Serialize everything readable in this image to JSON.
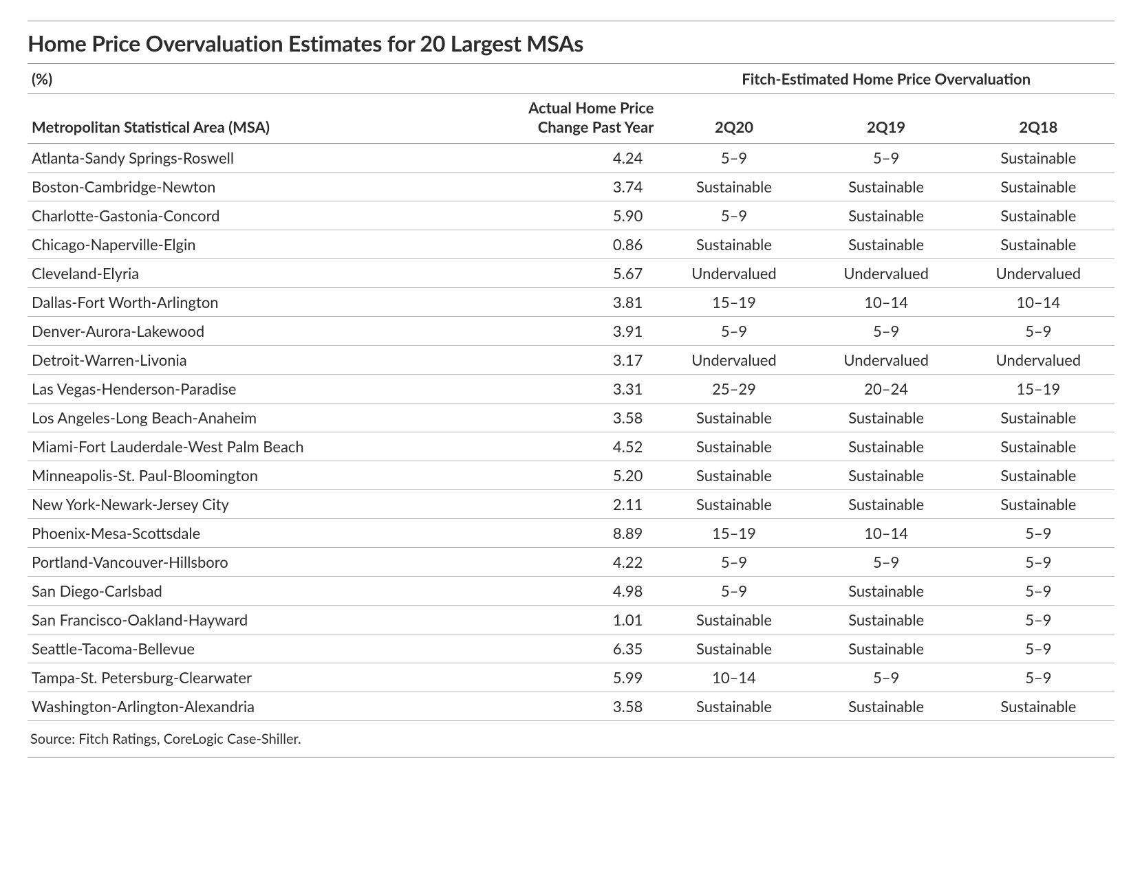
{
  "title": "Home Price Overvaluation Estimates for 20 Largest MSAs",
  "unit_label": "(%)",
  "group_header": "Fitch-Estimated Home Price Overvaluation",
  "columns": {
    "msa": "Metropolitan Statistical Area (MSA)",
    "change_l1": "Actual Home Price",
    "change_l2": "Change Past Year",
    "q20": "2Q20",
    "q19": "2Q19",
    "q18": "2Q18"
  },
  "rows": [
    {
      "msa": "Atlanta-Sandy Springs-Roswell",
      "chg": "4.24",
      "q20": "5–9",
      "q19": "5–9",
      "q18": "Sustainable"
    },
    {
      "msa": "Boston-Cambridge-Newton",
      "chg": "3.74",
      "q20": "Sustainable",
      "q19": "Sustainable",
      "q18": "Sustainable"
    },
    {
      "msa": "Charlotte-Gastonia-Concord",
      "chg": "5.90",
      "q20": "5–9",
      "q19": "Sustainable",
      "q18": "Sustainable"
    },
    {
      "msa": "Chicago-Naperville-Elgin",
      "chg": "0.86",
      "q20": "Sustainable",
      "q19": "Sustainable",
      "q18": "Sustainable"
    },
    {
      "msa": "Cleveland-Elyria",
      "chg": "5.67",
      "q20": "Undervalued",
      "q19": "Undervalued",
      "q18": "Undervalued"
    },
    {
      "msa": "Dallas-Fort Worth-Arlington",
      "chg": "3.81",
      "q20": "15–19",
      "q19": "10–14",
      "q18": "10–14"
    },
    {
      "msa": "Denver-Aurora-Lakewood",
      "chg": "3.91",
      "q20": "5–9",
      "q19": "5–9",
      "q18": "5–9"
    },
    {
      "msa": "Detroit-Warren-Livonia",
      "chg": "3.17",
      "q20": "Undervalued",
      "q19": "Undervalued",
      "q18": "Undervalued"
    },
    {
      "msa": "Las Vegas-Henderson-Paradise",
      "chg": "3.31",
      "q20": "25–29",
      "q19": "20–24",
      "q18": "15–19"
    },
    {
      "msa": "Los Angeles-Long Beach-Anaheim",
      "chg": "3.58",
      "q20": "Sustainable",
      "q19": "Sustainable",
      "q18": "Sustainable"
    },
    {
      "msa": "Miami-Fort Lauderdale-West Palm Beach",
      "chg": "4.52",
      "q20": "Sustainable",
      "q19": "Sustainable",
      "q18": "Sustainable"
    },
    {
      "msa": "Minneapolis-St. Paul-Bloomington",
      "chg": "5.20",
      "q20": "Sustainable",
      "q19": "Sustainable",
      "q18": "Sustainable"
    },
    {
      "msa": "New York-Newark-Jersey City",
      "chg": "2.11",
      "q20": "Sustainable",
      "q19": "Sustainable",
      "q18": "Sustainable"
    },
    {
      "msa": "Phoenix-Mesa-Scottsdale",
      "chg": "8.89",
      "q20": "15–19",
      "q19": "10–14",
      "q18": "5–9"
    },
    {
      "msa": "Portland-Vancouver-Hillsboro",
      "chg": "4.22",
      "q20": "5–9",
      "q19": "5–9",
      "q18": "5–9"
    },
    {
      "msa": "San Diego-Carlsbad",
      "chg": "4.98",
      "q20": "5–9",
      "q19": "Sustainable",
      "q18": "5–9"
    },
    {
      "msa": "San Francisco-Oakland-Hayward",
      "chg": "1.01",
      "q20": "Sustainable",
      "q19": "Sustainable",
      "q18": "5–9"
    },
    {
      "msa": "Seattle-Tacoma-Bellevue",
      "chg": "6.35",
      "q20": "Sustainable",
      "q19": "Sustainable",
      "q18": "5–9"
    },
    {
      "msa": "Tampa-St. Petersburg-Clearwater",
      "chg": "5.99",
      "q20": "10–14",
      "q19": "5–9",
      "q18": "5–9"
    },
    {
      "msa": "Washington-Arlington-Alexandria",
      "chg": "3.58",
      "q20": "Sustainable",
      "q19": "Sustainable",
      "q18": "Sustainable"
    }
  ],
  "source": "Source: Fitch Ratings, CoreLogic Case-Shiller.",
  "style": {
    "type": "table",
    "background_color": "#ffffff",
    "text_color": "#2c2c2c",
    "rule_color": "#8a8a8a",
    "row_border_color": "#b5b5b5",
    "title_fontsize_pt": 24,
    "header_fontsize_pt": 16,
    "body_fontsize_pt": 16,
    "source_fontsize_pt": 15,
    "font_family": "Lato / Helvetica-like humanist sans",
    "col_widths_pct": {
      "msa": 44,
      "chg": 14,
      "q20": 14,
      "q19": 14,
      "q18": 14
    },
    "alignment": {
      "msa": "left",
      "chg": "right",
      "q": "center"
    }
  }
}
